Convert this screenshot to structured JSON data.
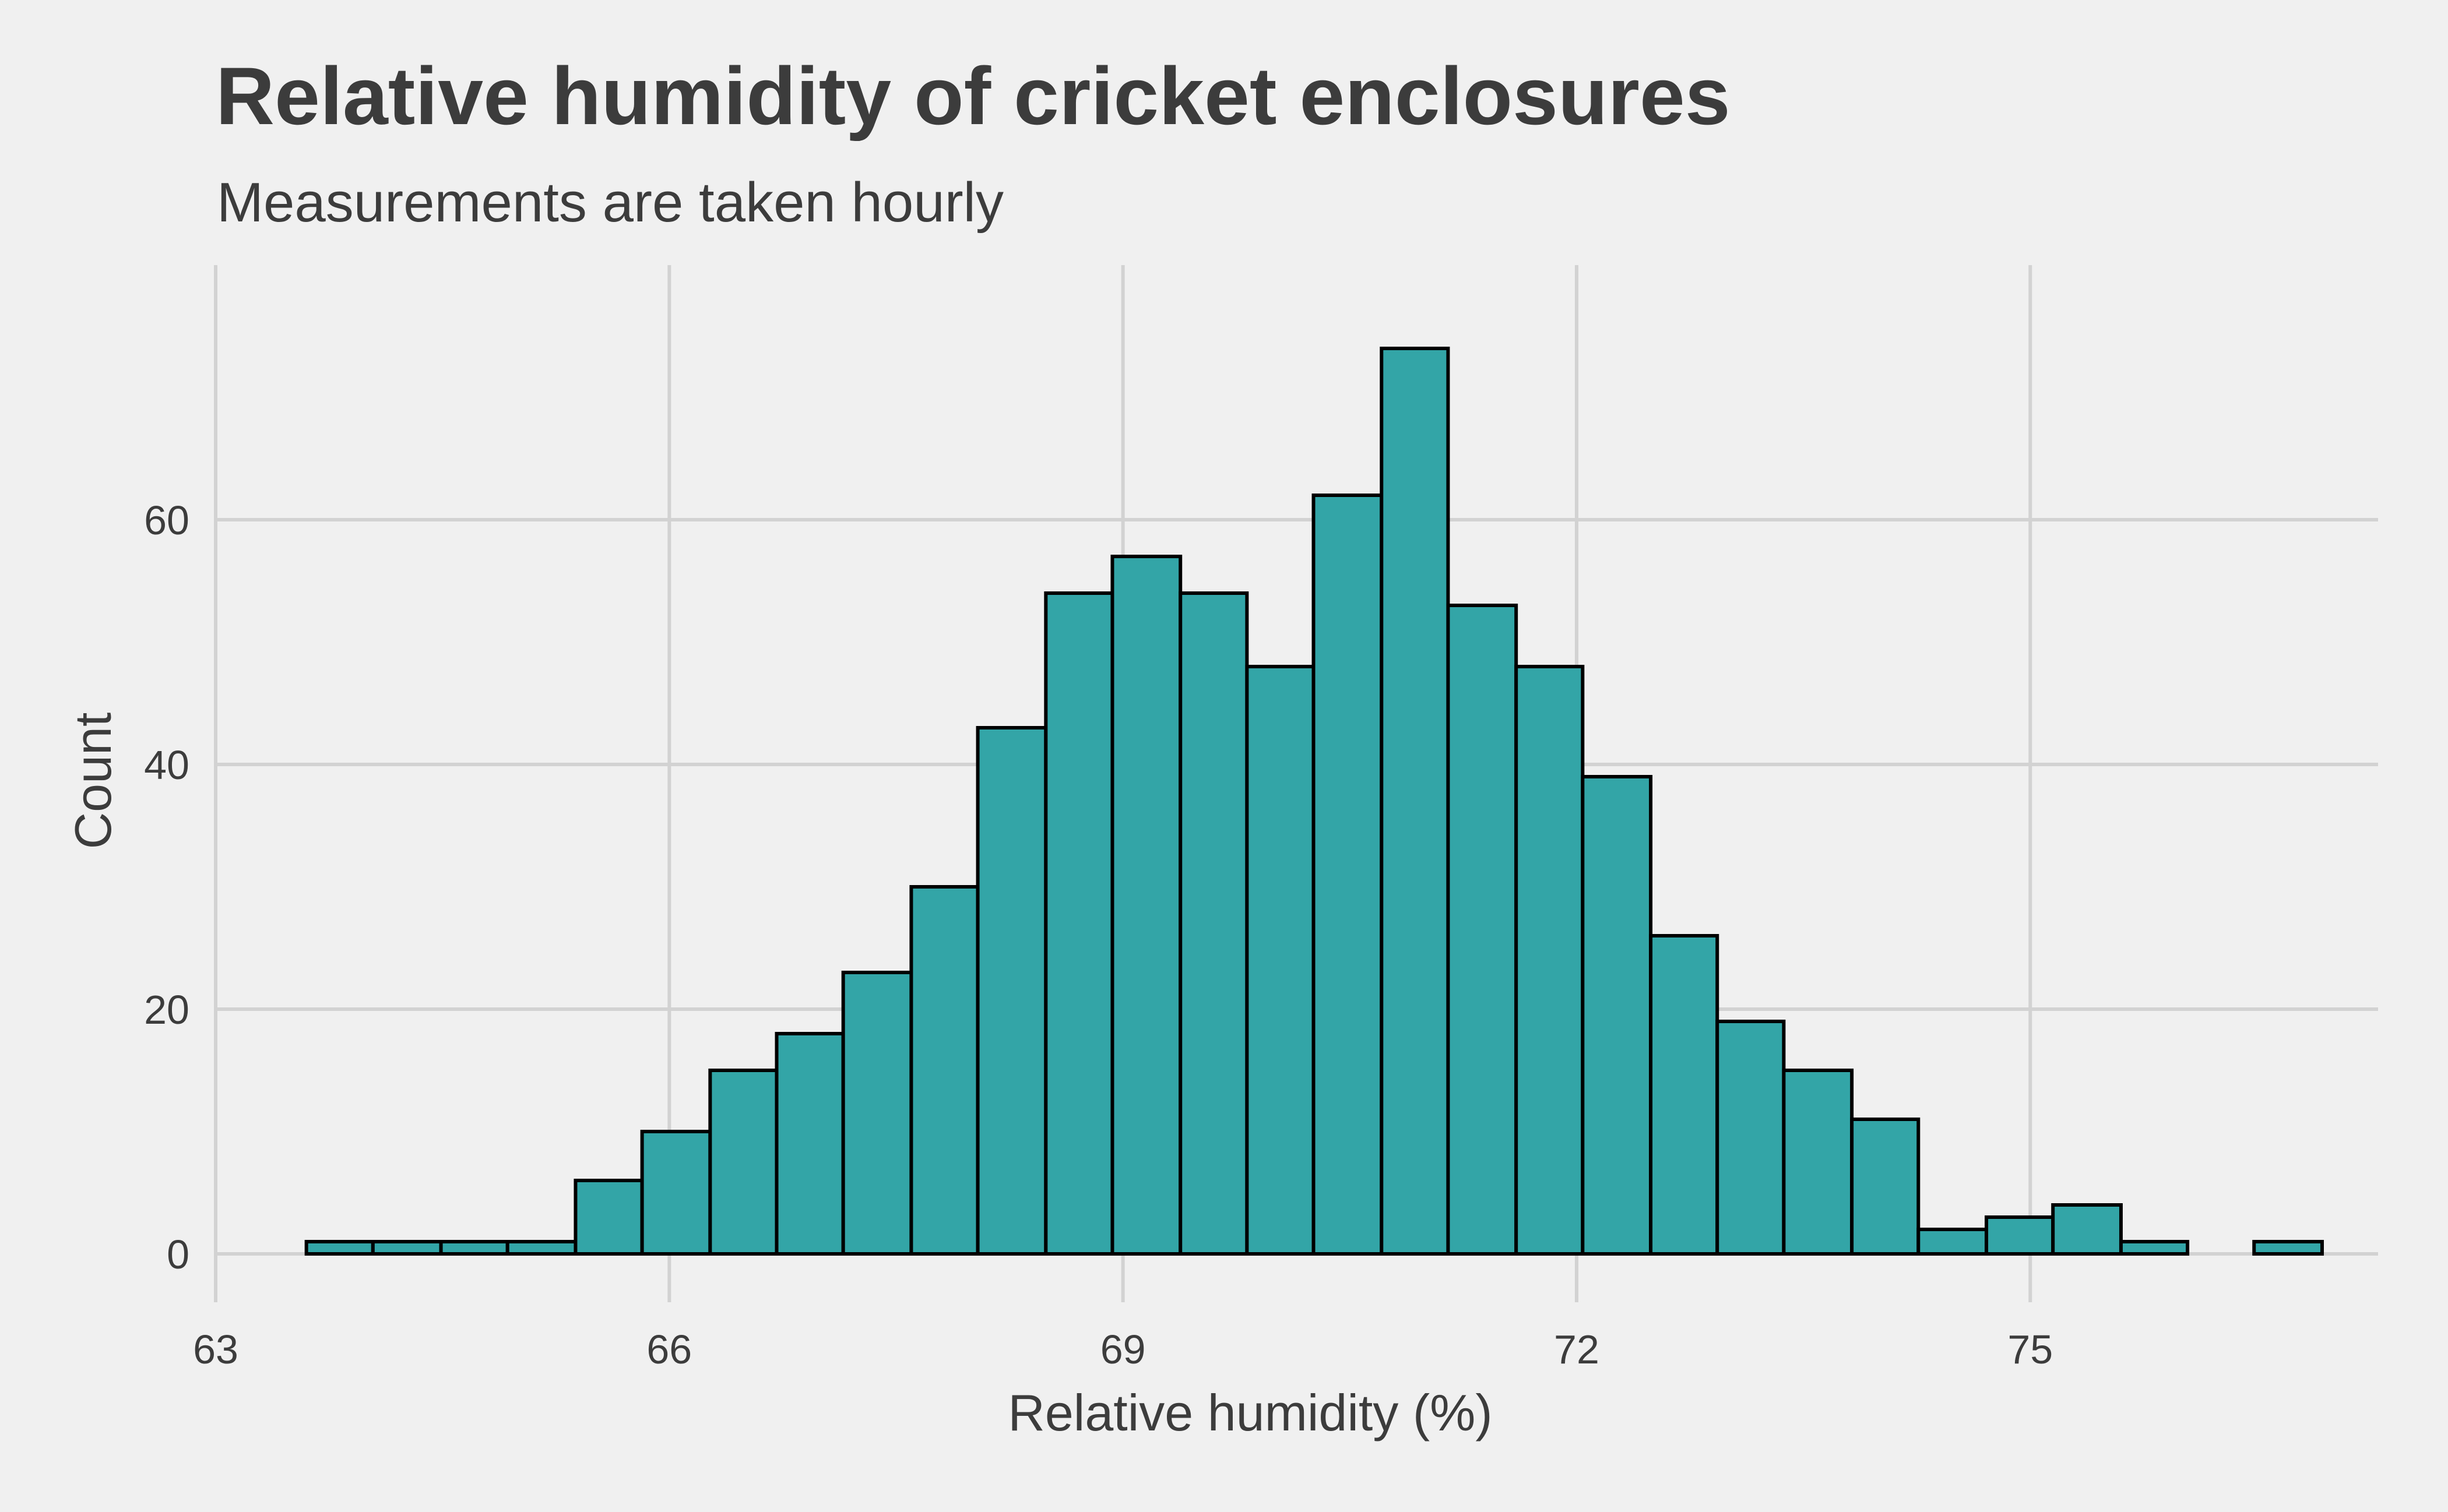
{
  "chart_data": {
    "type": "bar",
    "title": "Relative humidity of cricket enclosures",
    "subtitle": "Measurements are taken hourly",
    "xlabel": "Relative humidity (%)",
    "ylabel": "Count",
    "xlim": [
      63,
      77.3
    ],
    "ylim": [
      0,
      77
    ],
    "x_ticks": [
      63,
      66,
      69,
      72,
      75
    ],
    "y_ticks": [
      0,
      20,
      40,
      60
    ],
    "bin_width": 0.444,
    "bin_start": 63.6,
    "bins": [
      {
        "x0": 63.6,
        "x1": 64.04,
        "count": 1
      },
      {
        "x0": 64.04,
        "x1": 64.49,
        "count": 1
      },
      {
        "x0": 64.49,
        "x1": 64.93,
        "count": 1
      },
      {
        "x0": 64.93,
        "x1": 65.38,
        "count": 1
      },
      {
        "x0": 65.38,
        "x1": 65.82,
        "count": 6
      },
      {
        "x0": 65.82,
        "x1": 66.27,
        "count": 10
      },
      {
        "x0": 66.27,
        "x1": 66.71,
        "count": 15
      },
      {
        "x0": 66.71,
        "x1": 67.15,
        "count": 18
      },
      {
        "x0": 67.15,
        "x1": 67.6,
        "count": 23
      },
      {
        "x0": 67.6,
        "x1": 68.04,
        "count": 30
      },
      {
        "x0": 68.04,
        "x1": 68.49,
        "count": 43
      },
      {
        "x0": 68.49,
        "x1": 68.93,
        "count": 54
      },
      {
        "x0": 68.93,
        "x1": 69.38,
        "count": 57
      },
      {
        "x0": 69.38,
        "x1": 69.82,
        "count": 54
      },
      {
        "x0": 69.82,
        "x1": 70.26,
        "count": 48
      },
      {
        "x0": 70.26,
        "x1": 70.71,
        "count": 62
      },
      {
        "x0": 70.71,
        "x1": 71.15,
        "count": 74
      },
      {
        "x0": 71.15,
        "x1": 71.6,
        "count": 53
      },
      {
        "x0": 71.6,
        "x1": 72.04,
        "count": 48
      },
      {
        "x0": 72.04,
        "x1": 72.49,
        "count": 39
      },
      {
        "x0": 72.49,
        "x1": 72.93,
        "count": 26
      },
      {
        "x0": 72.93,
        "x1": 73.37,
        "count": 19
      },
      {
        "x0": 73.37,
        "x1": 73.82,
        "count": 15
      },
      {
        "x0": 73.82,
        "x1": 74.26,
        "count": 11
      },
      {
        "x0": 74.26,
        "x1": 74.71,
        "count": 2
      },
      {
        "x0": 74.71,
        "x1": 75.15,
        "count": 3
      },
      {
        "x0": 75.15,
        "x1": 75.6,
        "count": 4
      },
      {
        "x0": 75.6,
        "x1": 76.04,
        "count": 1
      },
      {
        "x0": 76.04,
        "x1": 76.48,
        "count": 0
      },
      {
        "x0": 76.48,
        "x1": 76.93,
        "count": 1
      }
    ],
    "grid": true,
    "legend": "none"
  },
  "colors": {
    "background": "#f0f0f0",
    "bar_fill": "#33a5a7",
    "bar_stroke": "#000000",
    "grid": "#d2d2d2",
    "text": "#3c3c3c"
  }
}
